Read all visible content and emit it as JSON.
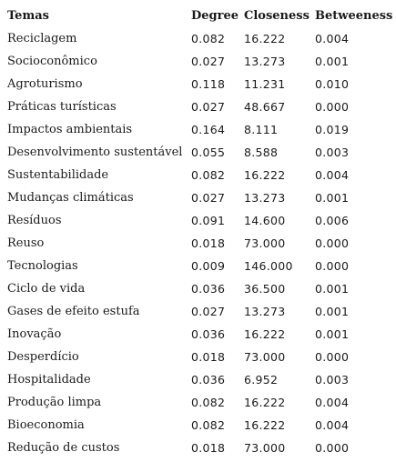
{
  "table": {
    "headers": {
      "topic": "Temas",
      "degree": "Degree",
      "closeness": "Closeness",
      "betweenness": "Betweeness"
    },
    "rows": [
      {
        "topic": "Reciclagem",
        "degree": "0.082",
        "closeness": "16.222",
        "betweenness": "0.004"
      },
      {
        "topic": "Socioconômico",
        "degree": "0.027",
        "closeness": "13.273",
        "betweenness": "0.001"
      },
      {
        "topic": "Agroturismo",
        "degree": "0.118",
        "closeness": "11.231",
        "betweenness": "0.010"
      },
      {
        "topic": "Práticas turísticas",
        "degree": "0.027",
        "closeness": "48.667",
        "betweenness": "0.000"
      },
      {
        "topic": "Impactos ambientais",
        "degree": "0.164",
        "closeness": "8.111",
        "betweenness": "0.019"
      },
      {
        "topic": "Desenvolvimento sustentável",
        "degree": "0.055",
        "closeness": "8.588",
        "betweenness": "0.003"
      },
      {
        "topic": "Sustentabilidade",
        "degree": "0.082",
        "closeness": "16.222",
        "betweenness": "0.004"
      },
      {
        "topic": "Mudanças climáticas",
        "degree": "0.027",
        "closeness": "13.273",
        "betweenness": "0.001"
      },
      {
        "topic": "Resíduos",
        "degree": "0.091",
        "closeness": "14.600",
        "betweenness": "0.006"
      },
      {
        "topic": "Reuso",
        "degree": "0.018",
        "closeness": "73.000",
        "betweenness": "0.000"
      },
      {
        "topic": "Tecnologias",
        "degree": "0.009",
        "closeness": "146.000",
        "betweenness": "0.000"
      },
      {
        "topic": "Ciclo de vida",
        "degree": "0.036",
        "closeness": "36.500",
        "betweenness": "0.001"
      },
      {
        "topic": "Gases de efeito estufa",
        "degree": "0.027",
        "closeness": "13.273",
        "betweenness": "0.001"
      },
      {
        "topic": "Inovação",
        "degree": "0.036",
        "closeness": "16.222",
        "betweenness": "0.001"
      },
      {
        "topic": "Desperdício",
        "degree": "0.018",
        "closeness": "73.000",
        "betweenness": "0.000"
      },
      {
        "topic": "Hospitalidade",
        "degree": "0.036",
        "closeness": "6.952",
        "betweenness": "0.003"
      },
      {
        "topic": "Produção limpa",
        "degree": "0.082",
        "closeness": "16.222",
        "betweenness": "0.004"
      },
      {
        "topic": "Bioeconomia",
        "degree": "0.082",
        "closeness": "16.222",
        "betweenness": "0.004"
      },
      {
        "topic": "Redução de custos",
        "degree": "0.018",
        "closeness": "73.000",
        "betweenness": "0.000"
      }
    ]
  }
}
